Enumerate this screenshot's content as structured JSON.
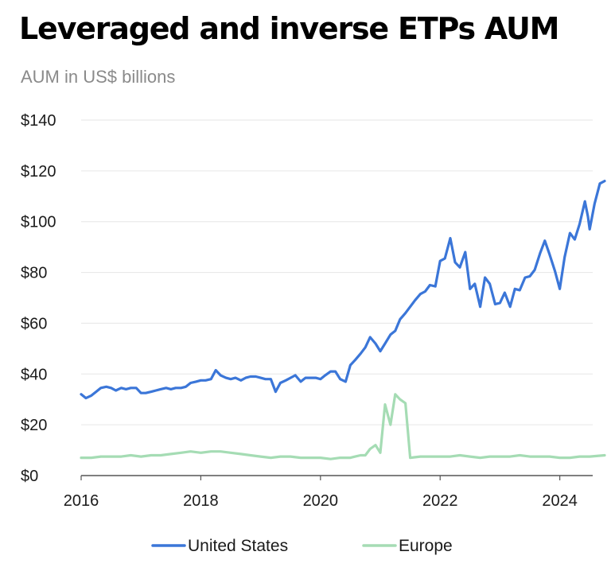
{
  "chart_data": {
    "type": "line",
    "title": "Leveraged and inverse ETPs AUM",
    "subtitle": "AUM in US$ billions",
    "xlabel": "",
    "ylabel": "",
    "xlim": [
      2016,
      2024.55
    ],
    "ylim": [
      0,
      140
    ],
    "y_ticks": [
      0,
      20,
      40,
      60,
      80,
      100,
      120,
      140
    ],
    "y_tick_labels": [
      "$0",
      "$20",
      "$40",
      "$60",
      "$80",
      "$100",
      "$120",
      "$140"
    ],
    "x_ticks": [
      2016,
      2018,
      2020,
      2022,
      2024
    ],
    "x_tick_labels": [
      "2016",
      "2018",
      "2020",
      "2022",
      "2024"
    ],
    "grid": "horizontal",
    "legend_position": "bottom-center",
    "series": [
      {
        "name": "United States",
        "color": "#3b76d8",
        "points": [
          [
            2016.0,
            32
          ],
          [
            2016.08,
            30.5
          ],
          [
            2016.17,
            31.5
          ],
          [
            2016.25,
            33
          ],
          [
            2016.33,
            34.5
          ],
          [
            2016.42,
            35
          ],
          [
            2016.5,
            34.5
          ],
          [
            2016.58,
            33.5
          ],
          [
            2016.67,
            34.5
          ],
          [
            2016.75,
            34
          ],
          [
            2016.83,
            34.5
          ],
          [
            2016.92,
            34.5
          ],
          [
            2017.0,
            32.5
          ],
          [
            2017.08,
            32.5
          ],
          [
            2017.17,
            33
          ],
          [
            2017.25,
            33.5
          ],
          [
            2017.33,
            34
          ],
          [
            2017.42,
            34.5
          ],
          [
            2017.5,
            34
          ],
          [
            2017.58,
            34.5
          ],
          [
            2017.67,
            34.5
          ],
          [
            2017.75,
            35
          ],
          [
            2017.83,
            36.5
          ],
          [
            2017.92,
            37
          ],
          [
            2018.0,
            37.5
          ],
          [
            2018.08,
            37.5
          ],
          [
            2018.17,
            38
          ],
          [
            2018.25,
            41.5
          ],
          [
            2018.33,
            39.5
          ],
          [
            2018.42,
            38.5
          ],
          [
            2018.5,
            38
          ],
          [
            2018.58,
            38.5
          ],
          [
            2018.67,
            37.5
          ],
          [
            2018.75,
            38.5
          ],
          [
            2018.83,
            39
          ],
          [
            2018.92,
            39
          ],
          [
            2019.0,
            38.5
          ],
          [
            2019.08,
            38
          ],
          [
            2019.17,
            38
          ],
          [
            2019.25,
            33
          ],
          [
            2019.33,
            36.5
          ],
          [
            2019.42,
            37.5
          ],
          [
            2019.5,
            38.5
          ],
          [
            2019.58,
            39.5
          ],
          [
            2019.67,
            37
          ],
          [
            2019.75,
            38.5
          ],
          [
            2019.83,
            38.5
          ],
          [
            2019.92,
            38.5
          ],
          [
            2020.0,
            38
          ],
          [
            2020.08,
            39.5
          ],
          [
            2020.17,
            41
          ],
          [
            2020.25,
            41
          ],
          [
            2020.33,
            38
          ],
          [
            2020.42,
            37
          ],
          [
            2020.5,
            43.5
          ],
          [
            2020.58,
            45.5
          ],
          [
            2020.67,
            48
          ],
          [
            2020.75,
            50.5
          ],
          [
            2020.83,
            54.5
          ],
          [
            2020.92,
            52
          ],
          [
            2021.0,
            49
          ],
          [
            2021.08,
            52
          ],
          [
            2021.17,
            55.5
          ],
          [
            2021.25,
            57
          ],
          [
            2021.33,
            61.5
          ],
          [
            2021.42,
            64
          ],
          [
            2021.5,
            66.5
          ],
          [
            2021.58,
            69
          ],
          [
            2021.67,
            71.5
          ],
          [
            2021.75,
            72.5
          ],
          [
            2021.83,
            75
          ],
          [
            2021.92,
            74.5
          ],
          [
            2022.0,
            84.5
          ],
          [
            2022.08,
            85.5
          ],
          [
            2022.17,
            93.5
          ],
          [
            2022.25,
            84
          ],
          [
            2022.33,
            82
          ],
          [
            2022.42,
            88
          ],
          [
            2022.5,
            73.5
          ],
          [
            2022.58,
            75.5
          ],
          [
            2022.67,
            66.5
          ],
          [
            2022.75,
            78
          ],
          [
            2022.83,
            75.5
          ],
          [
            2022.92,
            67.5
          ],
          [
            2023.0,
            68
          ],
          [
            2023.08,
            72
          ],
          [
            2023.17,
            66.5
          ],
          [
            2023.25,
            73.5
          ],
          [
            2023.33,
            73
          ],
          [
            2023.42,
            78
          ],
          [
            2023.5,
            78.5
          ],
          [
            2023.58,
            81
          ],
          [
            2023.67,
            87.5
          ],
          [
            2023.75,
            92.5
          ],
          [
            2023.83,
            87
          ],
          [
            2023.92,
            80.5
          ],
          [
            2024.0,
            73.5
          ],
          [
            2024.08,
            86
          ],
          [
            2024.17,
            95.5
          ],
          [
            2024.25,
            93
          ],
          [
            2024.33,
            99
          ],
          [
            2024.42,
            108
          ],
          [
            2024.47,
            102
          ],
          [
            2024.5,
            97
          ],
          [
            2024.58,
            107
          ],
          [
            2024.67,
            115
          ],
          [
            2024.75,
            116
          ]
        ]
      },
      {
        "name": "Europe",
        "color": "#a5dcb4",
        "points": [
          [
            2016.0,
            7
          ],
          [
            2016.17,
            7
          ],
          [
            2016.33,
            7.5
          ],
          [
            2016.5,
            7.5
          ],
          [
            2016.67,
            7.5
          ],
          [
            2016.83,
            8
          ],
          [
            2017.0,
            7.5
          ],
          [
            2017.17,
            8
          ],
          [
            2017.33,
            8
          ],
          [
            2017.5,
            8.5
          ],
          [
            2017.67,
            9
          ],
          [
            2017.83,
            9.5
          ],
          [
            2018.0,
            9
          ],
          [
            2018.17,
            9.5
          ],
          [
            2018.33,
            9.5
          ],
          [
            2018.5,
            9
          ],
          [
            2018.67,
            8.5
          ],
          [
            2018.83,
            8
          ],
          [
            2019.0,
            7.5
          ],
          [
            2019.17,
            7
          ],
          [
            2019.33,
            7.5
          ],
          [
            2019.5,
            7.5
          ],
          [
            2019.67,
            7
          ],
          [
            2019.83,
            7
          ],
          [
            2020.0,
            7
          ],
          [
            2020.17,
            6.5
          ],
          [
            2020.33,
            7
          ],
          [
            2020.5,
            7
          ],
          [
            2020.58,
            7.5
          ],
          [
            2020.67,
            8
          ],
          [
            2020.75,
            8
          ],
          [
            2020.83,
            10.5
          ],
          [
            2020.92,
            12
          ],
          [
            2021.0,
            9
          ],
          [
            2021.08,
            28
          ],
          [
            2021.17,
            20
          ],
          [
            2021.25,
            32
          ],
          [
            2021.33,
            30
          ],
          [
            2021.42,
            28.5
          ],
          [
            2021.5,
            7
          ],
          [
            2021.67,
            7.5
          ],
          [
            2021.83,
            7.5
          ],
          [
            2022.0,
            7.5
          ],
          [
            2022.17,
            7.5
          ],
          [
            2022.33,
            8
          ],
          [
            2022.5,
            7.5
          ],
          [
            2022.67,
            7
          ],
          [
            2022.83,
            7.5
          ],
          [
            2023.0,
            7.5
          ],
          [
            2023.17,
            7.5
          ],
          [
            2023.33,
            8
          ],
          [
            2023.5,
            7.5
          ],
          [
            2023.67,
            7.5
          ],
          [
            2023.83,
            7.5
          ],
          [
            2024.0,
            7
          ],
          [
            2024.17,
            7
          ],
          [
            2024.33,
            7.5
          ],
          [
            2024.5,
            7.5
          ],
          [
            2024.75,
            8
          ]
        ]
      }
    ]
  }
}
